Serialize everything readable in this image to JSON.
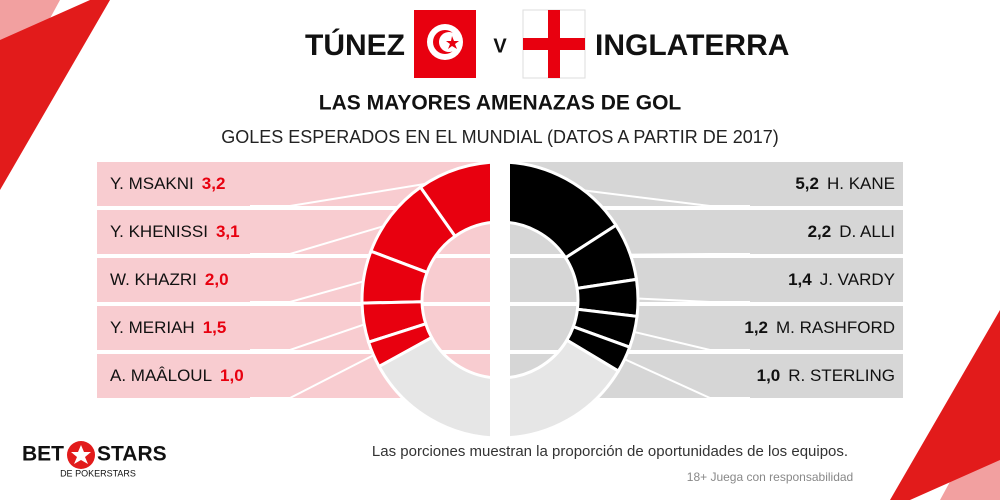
{
  "header": {
    "vs": "V"
  },
  "chart_data": {
    "type": "donut",
    "title": "LAS MAYORES AMENAZAS DE GOL",
    "subtitle": "GOLES ESPERADOS EN EL MUNDIAL (DATOS A PARTIR DE 2017)",
    "series": [
      {
        "name": "TÚNEZ",
        "color": "#e8000f",
        "categories": [
          "Y. MSAKNI",
          "Y. KHENISSI",
          "W. KHAZRI",
          "Y. MERIAH",
          "A. MAÂLOUL"
        ],
        "values": [
          3.2,
          3.1,
          2.0,
          1.5,
          1.0
        ],
        "value_labels": [
          "3,2",
          "3,1",
          "2,0",
          "1,5",
          "1,0"
        ]
      },
      {
        "name": "INGLATERRA",
        "color": "#000000",
        "categories": [
          "H. KANE",
          "D. ALLI",
          "J. VARDY",
          "M. RASHFORD",
          "R. STERLING"
        ],
        "values": [
          5.2,
          2.2,
          1.4,
          1.2,
          1.0
        ],
        "value_labels": [
          "5,2",
          "2,2",
          "1,4",
          "1,2",
          "1,0"
        ]
      }
    ],
    "note": "Las porciones muestran la proporción de oportunidades de los equipos."
  },
  "footer": {
    "disclaimer": "18+ Juega con responsabilidad",
    "logo_left": "BET",
    "logo_right": "STARS",
    "logo_sub": "DE POKERSTARS"
  }
}
